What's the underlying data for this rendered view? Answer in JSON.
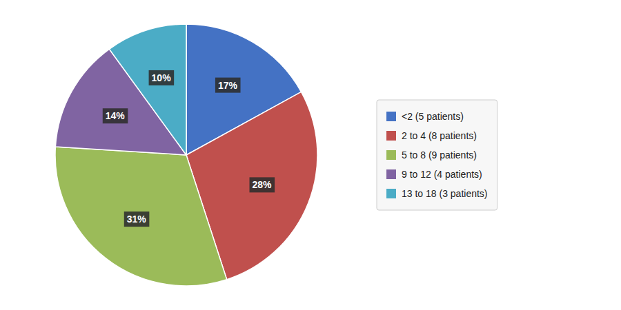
{
  "chart_data": {
    "type": "pie",
    "categories": [
      "<2 (5 patients)",
      "2 to 4 (8 patients)",
      "5 to 8 (9 patients)",
      "9 to 12 (4 patients)",
      "13 to 18 (3 patients)"
    ],
    "values": [
      17,
      28,
      31,
      14,
      10
    ],
    "value_labels": [
      "17%",
      "28%",
      "31%",
      "14%",
      "10%"
    ],
    "colors": [
      "#4472C4",
      "#C0504D",
      "#9BBB59",
      "#8064A2",
      "#4BACC6"
    ],
    "data_labels": true,
    "legend": "right"
  }
}
